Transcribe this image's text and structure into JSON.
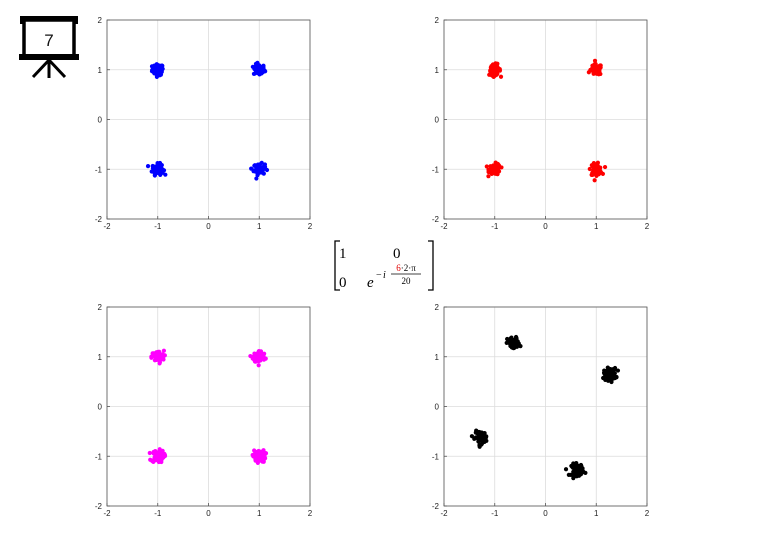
{
  "slide_number": "7",
  "matrix": {
    "a11": "1",
    "a12": "0",
    "a21": "0",
    "base": "e",
    "sign": "−",
    "imag": "i",
    "numerator_highlight": "6",
    "numerator_rest": "·2·π",
    "denominator": "20",
    "highlight_color": "#e00000"
  },
  "chart_data": [
    {
      "type": "scatter",
      "title": "",
      "xlabel": "",
      "ylabel": "",
      "xlim": [
        -2,
        2
      ],
      "ylim": [
        -2,
        2
      ],
      "xticks": [
        "-2",
        "-1",
        "0",
        "1",
        "2"
      ],
      "yticks": [
        "-2",
        "-1",
        "0",
        "1",
        "2"
      ],
      "grid": true,
      "color": "#0000ff",
      "clusters": [
        [
          -1,
          1
        ],
        [
          1,
          1
        ],
        [
          -1,
          -1
        ],
        [
          1,
          -1
        ]
      ],
      "spread": 0.055
    },
    {
      "type": "scatter",
      "title": "",
      "xlabel": "",
      "ylabel": "",
      "xlim": [
        -2,
        2
      ],
      "ylim": [
        -2,
        2
      ],
      "xticks": [
        "-2",
        "-1",
        "0",
        "1",
        "2"
      ],
      "yticks": [
        "-2",
        "-1",
        "0",
        "1",
        "2"
      ],
      "grid": true,
      "color": "#ff0000",
      "clusters": [
        [
          -1,
          1
        ],
        [
          1,
          1
        ],
        [
          -1,
          -1
        ],
        [
          1,
          -1
        ]
      ],
      "spread": 0.055
    },
    {
      "type": "scatter",
      "title": "",
      "xlabel": "",
      "ylabel": "",
      "xlim": [
        -2,
        2
      ],
      "ylim": [
        -2,
        2
      ],
      "xticks": [
        "-2",
        "-1",
        "0",
        "1",
        "2"
      ],
      "yticks": [
        "-2",
        "-1",
        "0",
        "1",
        "2"
      ],
      "grid": true,
      "color": "#ff00ff",
      "clusters": [
        [
          -1,
          1
        ],
        [
          1,
          1
        ],
        [
          -1,
          -1
        ],
        [
          1,
          -1
        ]
      ],
      "spread": 0.06
    },
    {
      "type": "scatter",
      "title": "",
      "xlabel": "",
      "ylabel": "",
      "xlim": [
        -2,
        2
      ],
      "ylim": [
        -2,
        2
      ],
      "xticks": [
        "-2",
        "-1",
        "0",
        "1",
        "2"
      ],
      "yticks": [
        "-2",
        "-1",
        "0",
        "1",
        "2"
      ],
      "grid": true,
      "color": "#000000",
      "clusters": [
        [
          -0.63,
          1.27
        ],
        [
          1.27,
          0.65
        ],
        [
          -1.27,
          -0.62
        ],
        [
          0.63,
          -1.27
        ]
      ],
      "spread": 0.06
    }
  ]
}
